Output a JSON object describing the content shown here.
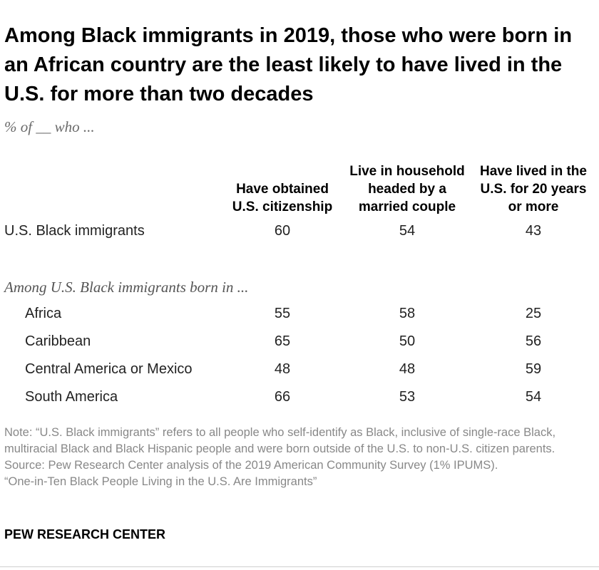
{
  "chart_data": {
    "type": "table",
    "title": "Among Black immigrants in 2019, those who were born in an African country are the least likely to have lived in the U.S. for more than two decades",
    "subtitle": "% of __ who ...",
    "columns": [
      "Have obtained U.S. citizenship",
      "Live in household headed by a married couple",
      "Have lived in the U.S. for 20 years or more"
    ],
    "total_row": {
      "label": "U.S. Black immigrants",
      "values": [
        60,
        54,
        43
      ]
    },
    "section_label": "Among U.S. Black immigrants born in ...",
    "rows": [
      {
        "label": "Africa",
        "values": [
          55,
          58,
          25
        ]
      },
      {
        "label": "Caribbean",
        "values": [
          65,
          50,
          56
        ]
      },
      {
        "label": "Central America or Mexico",
        "values": [
          48,
          48,
          59
        ]
      },
      {
        "label": "South America",
        "values": [
          66,
          53,
          54
        ]
      }
    ]
  },
  "footer": {
    "note": "Note: “U.S. Black immigrants” refers to all people who self-identify as Black, inclusive of single-race Black, multiracial Black and Black Hispanic people and were born outside of the U.S. to non-U.S. citizen parents.",
    "source": "Source: Pew Research Center analysis of the 2019 American Community Survey (1% IPUMS).",
    "report": "“One-in-Ten Black People Living in the U.S. Are Immigrants”",
    "brand": "PEW RESEARCH CENTER"
  }
}
